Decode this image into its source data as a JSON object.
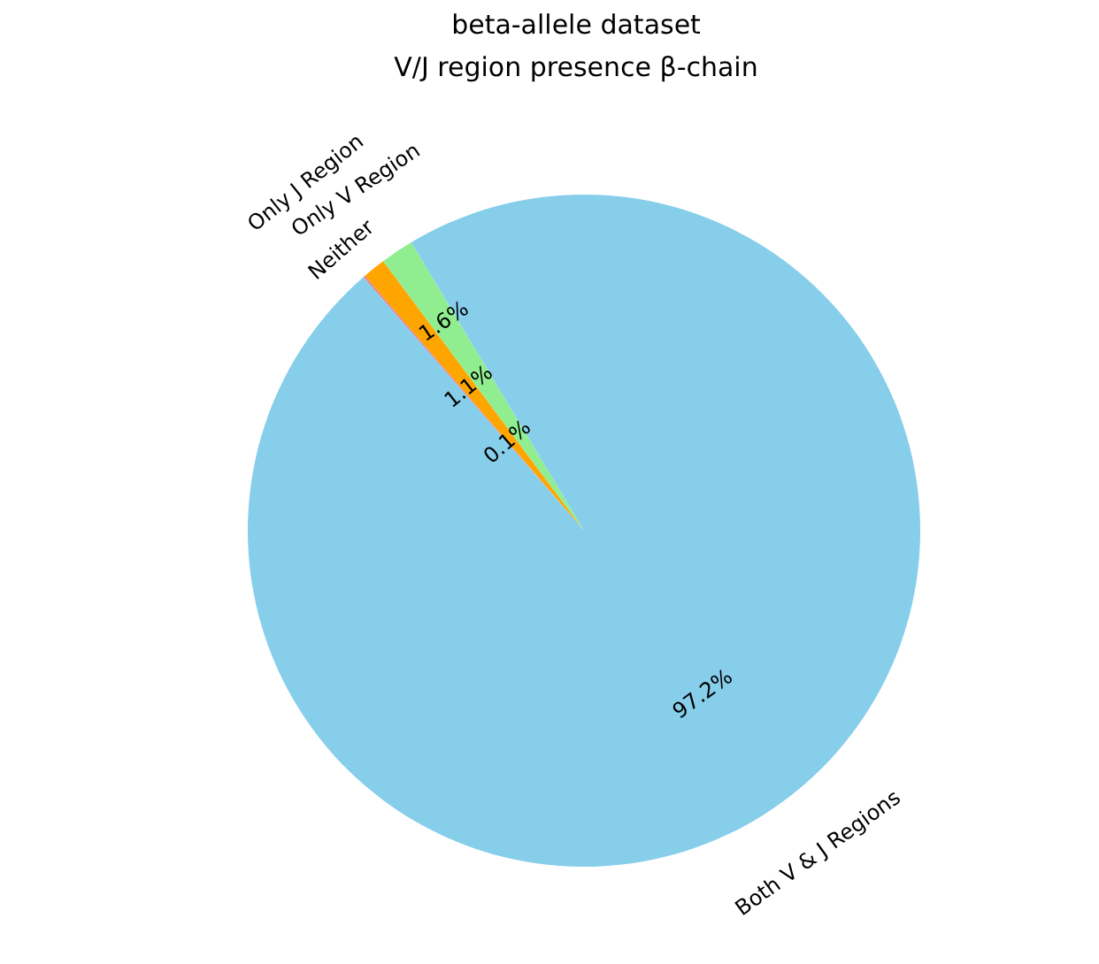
{
  "chart_data": {
    "type": "pie",
    "title": "beta-allele dataset\nV/J region presence β-chain",
    "categories": [
      "Both V & J Regions",
      "Only V Region",
      "Only J Region",
      "Neither"
    ],
    "values": [
      97.2,
      1.6,
      1.1,
      0.1
    ],
    "colors": [
      "#87ceeb",
      "#90ee90",
      "#ffa500",
      "#f08080"
    ],
    "value_labels": [
      "97.2%",
      "1.6%",
      "1.1%",
      "0.1%"
    ]
  }
}
